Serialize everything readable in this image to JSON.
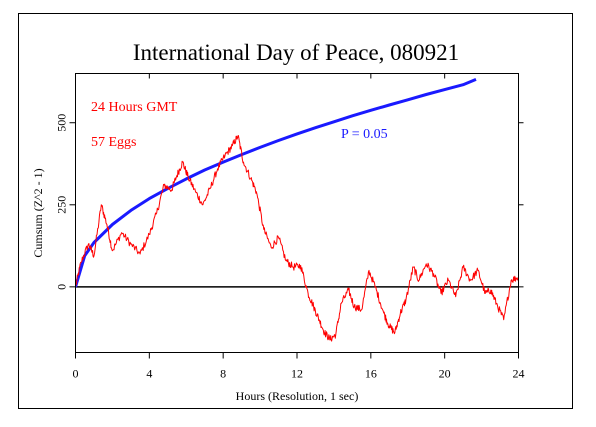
{
  "chart_data": {
    "type": "line",
    "title": "International Day of Peace, 080921",
    "xlabel": "Hours (Resolution, 1 sec)",
    "ylabel": "Cumsum (Z^2 - 1)",
    "xlim": [
      0,
      24
    ],
    "ylim": [
      -200,
      650
    ],
    "x_ticks": [
      0,
      4,
      8,
      12,
      16,
      20,
      24
    ],
    "y_ticks": [
      0,
      250,
      500
    ],
    "grid": false,
    "annotations": {
      "duration": "24 Hours GMT",
      "eggs": "57 Eggs",
      "p_label": "P = 0.05"
    },
    "series": [
      {
        "name": "P = 0.05",
        "color": "#1a1aff",
        "x": [
          0,
          0.5,
          1,
          2,
          3,
          4,
          5,
          6,
          7,
          8,
          9,
          10,
          11,
          12,
          13,
          14,
          15,
          16,
          17,
          18,
          19,
          20,
          21,
          21.7
        ],
        "y": [
          0,
          95,
          135,
          190,
          233,
          269,
          300,
          329,
          356,
          380,
          403,
          425,
          446,
          466,
          485,
          503,
          521,
          538,
          554,
          570,
          586,
          601,
          616,
          632
        ]
      },
      {
        "name": "Cumsum",
        "color": "#ff0000",
        "x": [
          0,
          0.3,
          0.7,
          1.0,
          1.4,
          1.7,
          2.0,
          2.5,
          3.0,
          3.5,
          4.0,
          4.4,
          4.8,
          5.2,
          5.5,
          5.8,
          6.1,
          6.5,
          6.9,
          7.3,
          7.7,
          8.1,
          8.5,
          8.8,
          9.1,
          9.5,
          9.8,
          10.2,
          10.6,
          11.0,
          11.4,
          11.8,
          12.2,
          12.6,
          12.9,
          13.2,
          13.5,
          13.8,
          14.1,
          14.4,
          14.8,
          15.1,
          15.5,
          15.9,
          16.3,
          16.7,
          17.0,
          17.3,
          17.6,
          17.9,
          18.3,
          18.6,
          19.0,
          19.4,
          19.8,
          20.2,
          20.6,
          21.0,
          21.4,
          21.8,
          22.2,
          22.5,
          22.8,
          23.2,
          23.6,
          24.0
        ],
        "y": [
          0,
          75,
          130,
          95,
          250,
          190,
          110,
          165,
          130,
          100,
          160,
          225,
          310,
          295,
          340,
          380,
          335,
          290,
          250,
          300,
          360,
          400,
          430,
          460,
          380,
          330,
          290,
          175,
          120,
          150,
          80,
          60,
          65,
          -20,
          -60,
          -100,
          -140,
          -160,
          -145,
          -50,
          -10,
          -60,
          -70,
          50,
          -10,
          -80,
          -120,
          -140,
          -80,
          -40,
          60,
          20,
          70,
          40,
          -20,
          20,
          -30,
          60,
          20,
          50,
          -20,
          -10,
          -50,
          -100,
          20,
          30
        ]
      }
    ]
  }
}
